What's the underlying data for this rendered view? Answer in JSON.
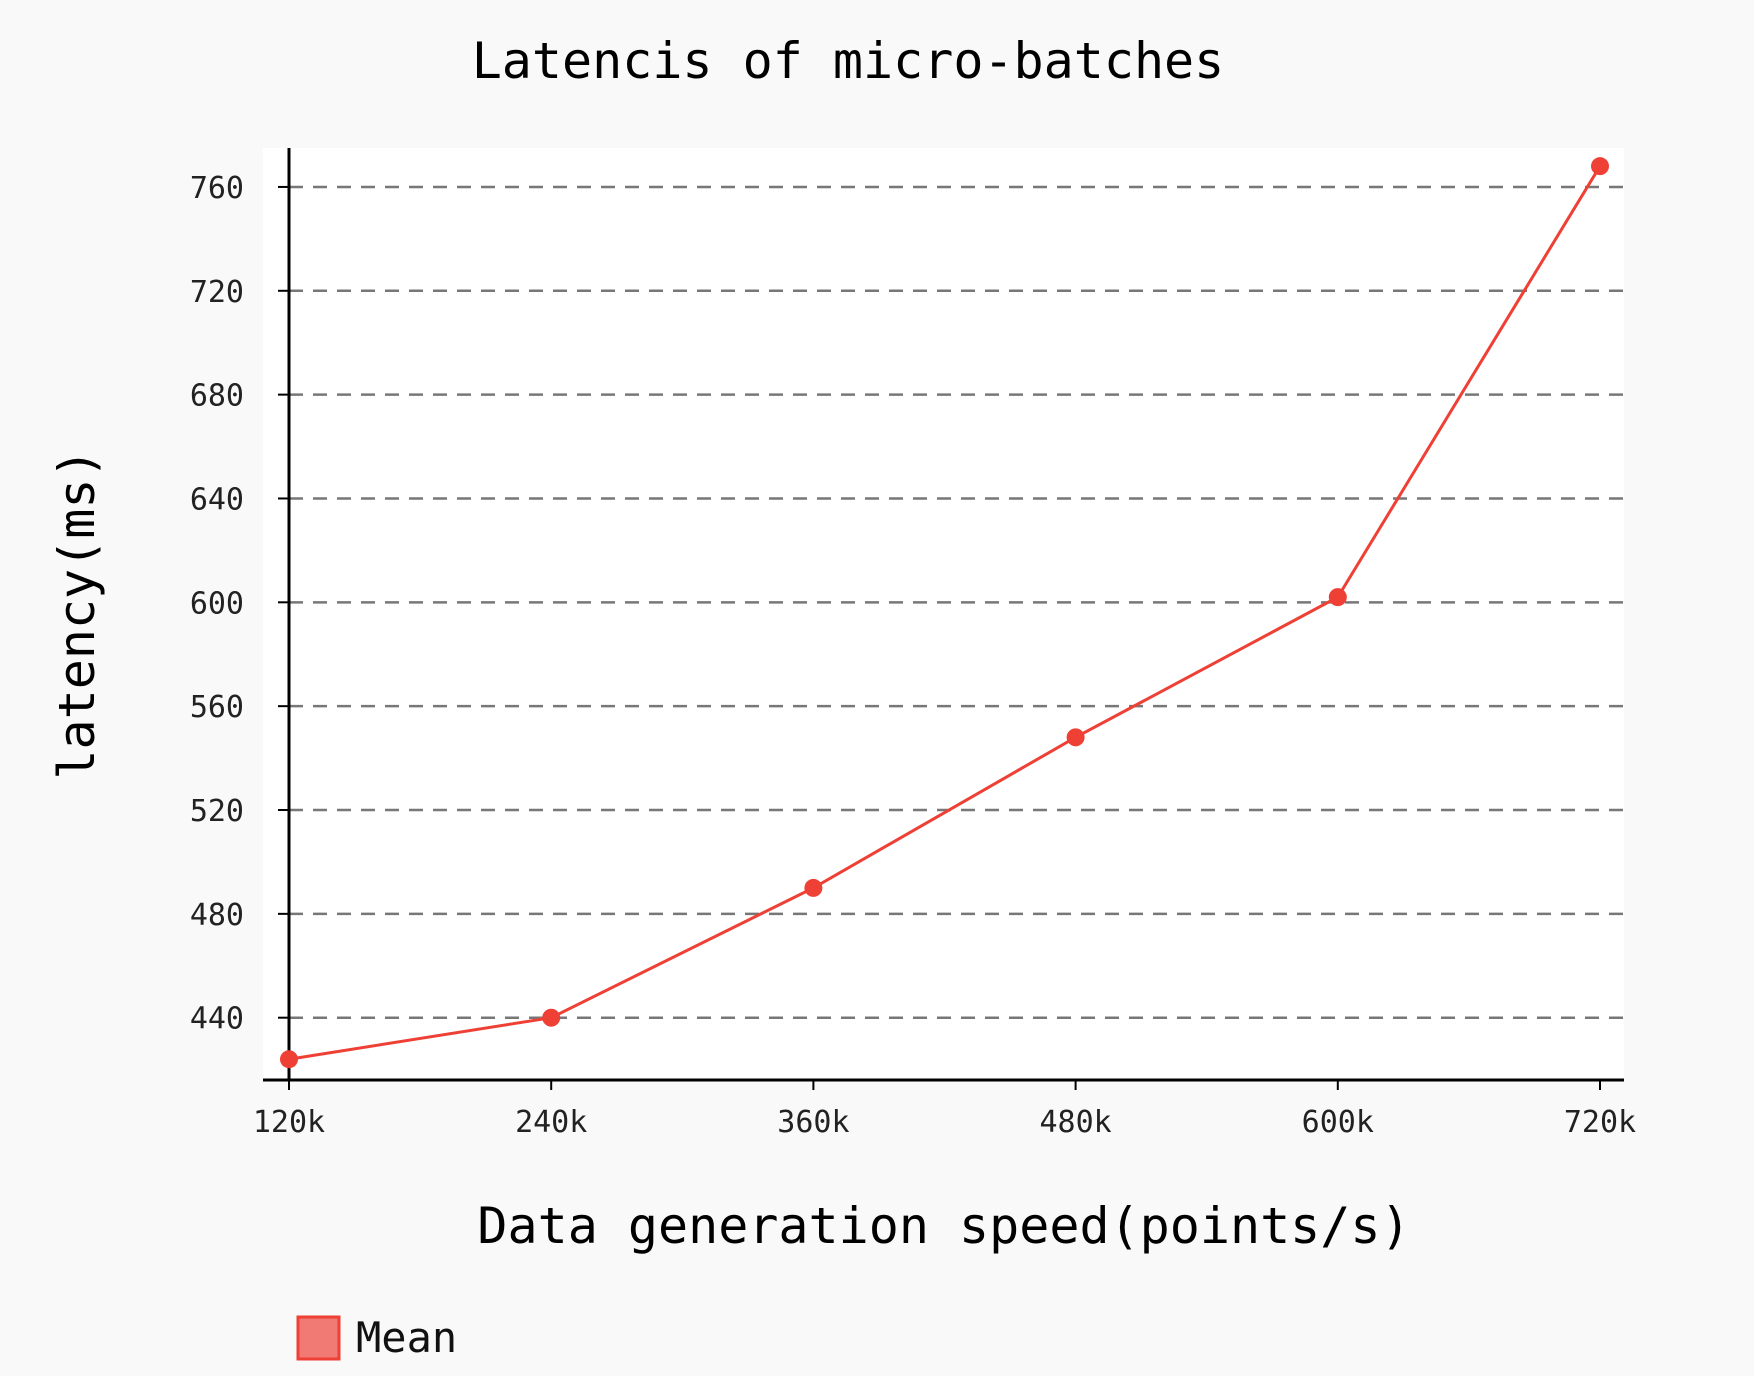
{
  "chart_data": {
    "type": "line",
    "title": "Latencis of micro-batches",
    "xlabel": "Data generation speed(points/s)",
    "ylabel": "latency(ms)",
    "categories": [
      "120k",
      "240k",
      "360k",
      "480k",
      "600k",
      "720k"
    ],
    "series": [
      {
        "name": "Mean",
        "values": [
          424,
          440,
          490,
          548,
          602,
          768
        ]
      }
    ],
    "yticks": [
      440,
      480,
      520,
      560,
      600,
      640,
      680,
      720,
      760
    ],
    "ylim": [
      416,
      775
    ],
    "grid": "horizontal-dashed",
    "legend": "bottom-left",
    "colors": {
      "line": "#ee4035",
      "legend_fill": "#f27a74",
      "grid": "#777777",
      "plot_bg": "#ffffff",
      "page_bg": "#f9f9f9"
    }
  }
}
